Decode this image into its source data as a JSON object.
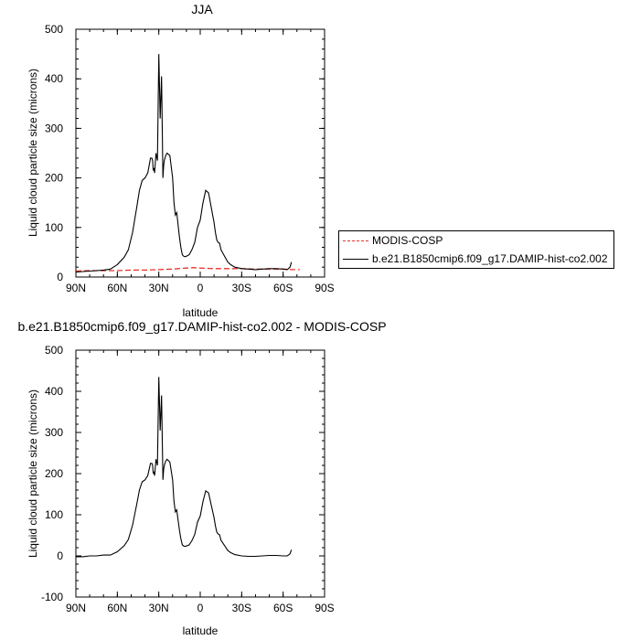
{
  "colors": {
    "modis": "#e8332a",
    "model": "#000000",
    "axis": "#000000"
  },
  "legend": {
    "items": [
      {
        "label": "MODIS-COSP",
        "style": "dashed",
        "color": "#e8332a"
      },
      {
        "label": "b.e21.B1850cmip6.f09_g17.DAMIP-hist-co2.002",
        "style": "solid",
        "color": "#000000"
      }
    ]
  },
  "chart_data": [
    {
      "type": "line",
      "title": "JJA",
      "xlabel": "latitude",
      "ylabel": "Liquid cloud particle size (microns)",
      "xlim": [
        90,
        -90
      ],
      "ylim": [
        0,
        500
      ],
      "x_ticks": [
        90,
        60,
        30,
        0,
        -30,
        -60,
        -90
      ],
      "x_ticklabels": [
        "90N",
        "60N",
        "30N",
        "0",
        "30S",
        "60S",
        "90S"
      ],
      "y_ticks": [
        0,
        100,
        200,
        300,
        400,
        500
      ],
      "y_ticklabels": [
        "0",
        "100",
        "200",
        "300",
        "400",
        "500"
      ],
      "series": [
        {
          "name": "MODIS-COSP",
          "style": "dashed",
          "x": [
            90,
            80,
            70,
            60,
            50,
            40,
            30,
            20,
            10,
            5,
            0,
            -10,
            -20,
            -30,
            -40,
            -50,
            -60,
            -66,
            -72
          ],
          "y": [
            12,
            13,
            13,
            13,
            14,
            14,
            15,
            16,
            18,
            19,
            18,
            17,
            17,
            17,
            16,
            16,
            16,
            15,
            15
          ]
        },
        {
          "name": "b.e21.B1850cmip6.f09_g17.DAMIP-hist-co2.002",
          "style": "solid",
          "x": [
            90,
            85,
            80,
            75,
            70,
            65,
            60,
            55,
            52,
            49,
            46,
            44,
            42,
            40,
            38,
            37,
            36,
            35,
            34.5,
            34,
            33.5,
            33,
            32,
            31,
            30,
            29,
            28,
            27,
            26.5,
            26,
            25,
            24,
            22,
            20,
            19,
            18,
            17,
            16,
            15,
            14,
            13,
            12,
            11,
            10,
            8,
            6,
            4,
            2,
            0,
            -2,
            -4,
            -6,
            -8,
            -10,
            -11,
            -12,
            -13,
            -14,
            -15,
            -16,
            -17,
            -18,
            -19,
            -20,
            -22,
            -25,
            -30,
            -35,
            -40,
            -45,
            -50,
            -55,
            -60,
            -63,
            -65,
            -66
          ],
          "y": [
            10,
            11,
            12,
            13,
            14,
            16,
            25,
            40,
            55,
            90,
            140,
            175,
            195,
            200,
            210,
            225,
            240,
            240,
            235,
            215,
            220,
            210,
            250,
            235,
            450,
            320,
            405,
            200,
            225,
            235,
            245,
            250,
            245,
            200,
            150,
            125,
            130,
            105,
            80,
            60,
            45,
            42,
            41,
            42,
            45,
            55,
            70,
            100,
            115,
            150,
            175,
            170,
            140,
            110,
            90,
            75,
            70,
            68,
            55,
            50,
            45,
            40,
            35,
            30,
            25,
            20,
            17,
            16,
            15,
            16,
            17,
            17,
            16,
            15,
            20,
            30
          ]
        }
      ]
    },
    {
      "type": "line",
      "title": "b.e21.B1850cmip6.f09_g17.DAMIP-hist-co2.002 - MODIS-COSP",
      "xlabel": "latitude",
      "ylabel": "Liquid cloud particle size (microns)",
      "xlim": [
        90,
        -90
      ],
      "ylim": [
        -100,
        500
      ],
      "x_ticks": [
        90,
        60,
        30,
        0,
        -30,
        -60,
        -90
      ],
      "x_ticklabels": [
        "90N",
        "60N",
        "30N",
        "0",
        "30S",
        "60S",
        "90S"
      ],
      "y_ticks": [
        -100,
        0,
        100,
        200,
        300,
        400,
        500
      ],
      "y_ticklabels": [
        "-100",
        "0",
        "100",
        "200",
        "300",
        "400",
        "500"
      ],
      "series": [
        {
          "style": "solid",
          "x": [
            90,
            85,
            80,
            75,
            70,
            65,
            60,
            55,
            52,
            49,
            46,
            44,
            42,
            40,
            38,
            37,
            36,
            35,
            34.5,
            34,
            33.5,
            33,
            32,
            31,
            30,
            29,
            28,
            27,
            26.5,
            26,
            25,
            24,
            22,
            20,
            19,
            18,
            17,
            16,
            15,
            14,
            13,
            12,
            11,
            10,
            8,
            6,
            4,
            2,
            0,
            -2,
            -4,
            -6,
            -8,
            -10,
            -11,
            -12,
            -13,
            -14,
            -15,
            -16,
            -17,
            -18,
            -19,
            -20,
            -22,
            -25,
            -30,
            -35,
            -40,
            -45,
            -50,
            -55,
            -60,
            -63,
            -65,
            -66
          ],
          "y": [
            -2,
            -2,
            0,
            0,
            2,
            2,
            10,
            25,
            40,
            75,
            125,
            160,
            180,
            185,
            195,
            210,
            225,
            225,
            220,
            200,
            205,
            195,
            235,
            220,
            435,
            305,
            390,
            185,
            210,
            220,
            230,
            235,
            228,
            185,
            132,
            107,
            112,
            87,
            62,
            42,
            27,
            24,
            23,
            24,
            27,
            37,
            52,
            82,
            97,
            132,
            158,
            153,
            123,
            93,
            73,
            58,
            53,
            51,
            38,
            33,
            28,
            23,
            18,
            13,
            8,
            3,
            0,
            -1,
            -1,
            0,
            1,
            1,
            0,
            0,
            5,
            15
          ]
        }
      ]
    }
  ]
}
